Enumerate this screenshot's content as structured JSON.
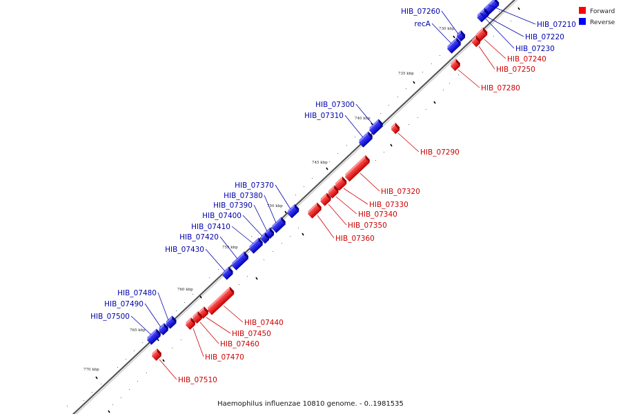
{
  "caption": "Haemophilus influenzae 10810 genome. - 0..1981535",
  "legend": [
    {
      "label": "Forward",
      "color": "#ff0000"
    },
    {
      "label": "Reverse",
      "color": "#0000ff"
    }
  ],
  "colors": {
    "forward": "#ff0000",
    "reverse": "#0000ff",
    "label_forward": "#cc0000",
    "label_reverse": "#0000aa",
    "backbone": "#777777"
  },
  "scale_ticks": [
    "735 kbp",
    "740 kbp",
    "745 kbp",
    "750 kbp",
    "755 kbp",
    "760 kbp",
    "765 kbp",
    "770 kbp"
  ],
  "scale_tick_top": "730 kbp",
  "genes": [
    {
      "name": "HIB_07210",
      "strand": "reverse"
    },
    {
      "name": "HIB_07220",
      "strand": "reverse"
    },
    {
      "name": "HIB_07230",
      "strand": "reverse"
    },
    {
      "name": "HIB_07240",
      "strand": "forward"
    },
    {
      "name": "HIB_07250",
      "strand": "forward"
    },
    {
      "name": "HIB_07260",
      "strand": "reverse"
    },
    {
      "name": "recA",
      "strand": "reverse"
    },
    {
      "name": "HIB_07280",
      "strand": "forward"
    },
    {
      "name": "HIB_07290",
      "strand": "forward"
    },
    {
      "name": "HIB_07300",
      "strand": "reverse"
    },
    {
      "name": "HIB_07310",
      "strand": "reverse"
    },
    {
      "name": "HIB_07320",
      "strand": "forward"
    },
    {
      "name": "HIB_07330",
      "strand": "forward"
    },
    {
      "name": "HIB_07340",
      "strand": "forward"
    },
    {
      "name": "HIB_07350",
      "strand": "forward"
    },
    {
      "name": "HIB_07360",
      "strand": "forward"
    },
    {
      "name": "HIB_07370",
      "strand": "reverse"
    },
    {
      "name": "HIB_07380",
      "strand": "reverse"
    },
    {
      "name": "HIB_07390",
      "strand": "reverse"
    },
    {
      "name": "HIB_07400",
      "strand": "reverse"
    },
    {
      "name": "HIB_07410",
      "strand": "reverse"
    },
    {
      "name": "HIB_07420",
      "strand": "reverse"
    },
    {
      "name": "HIB_07430",
      "strand": "reverse"
    },
    {
      "name": "HIB_07440",
      "strand": "forward"
    },
    {
      "name": "HIB_07450",
      "strand": "forward"
    },
    {
      "name": "HIB_07460",
      "strand": "forward"
    },
    {
      "name": "HIB_07470",
      "strand": "forward"
    },
    {
      "name": "HIB_07480",
      "strand": "reverse"
    },
    {
      "name": "HIB_07490",
      "strand": "reverse"
    },
    {
      "name": "HIB_07500",
      "strand": "reverse"
    },
    {
      "name": "HIB_07510",
      "strand": "forward"
    }
  ]
}
